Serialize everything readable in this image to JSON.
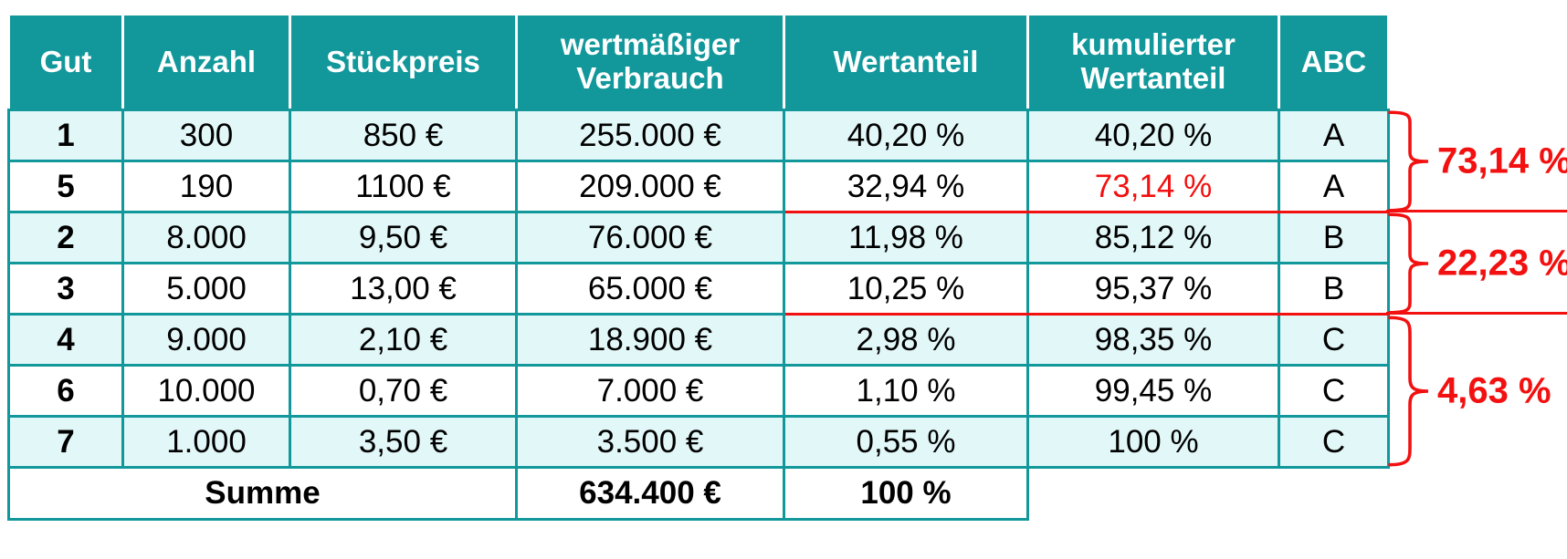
{
  "chart_data": {
    "type": "table",
    "headers": [
      "Gut",
      "Anzahl",
      "Stückpreis",
      "wertmäßiger\nVerbrauch",
      "Wertanteil",
      "kumulierter\nWertanteil",
      "ABC"
    ],
    "rows": [
      [
        "1",
        "300",
        "850 €",
        "255.000 €",
        "40,20 %",
        "40,20 %",
        "A"
      ],
      [
        "5",
        "190",
        "1100 €",
        "209.000 €",
        "32,94 %",
        "73,14 %",
        "A"
      ],
      [
        "2",
        "8.000",
        "9,50 €",
        "76.000 €",
        "11,98 %",
        "85,12 %",
        "B"
      ],
      [
        "3",
        "5.000",
        "13,00 €",
        "65.000 €",
        "10,25 %",
        "95,37 %",
        "B"
      ],
      [
        "4",
        "9.000",
        "2,10 €",
        "18.900 €",
        "2,98 %",
        "98,35 %",
        "C"
      ],
      [
        "6",
        "10.000",
        "0,70 €",
        "7.000 €",
        "1,10 %",
        "99,45 %",
        "C"
      ],
      [
        "7",
        "1.000",
        "3,50 €",
        "3.500 €",
        "0,55 %",
        "100 %",
        "C"
      ]
    ],
    "sum_row": {
      "label": "Summe",
      "verbrauch": "634.400 €",
      "wertanteil": "100 %"
    },
    "class_groups": [
      {
        "class": "A",
        "share_label": "73,14 %",
        "row_indexes": [
          0,
          1
        ]
      },
      {
        "class": "B",
        "share_label": "22,23 %",
        "row_indexes": [
          2,
          3
        ]
      },
      {
        "class": "C",
        "share_label": "4,63 %",
        "row_indexes": [
          4,
          5,
          6
        ]
      }
    ],
    "highlighted_cell": {
      "row_gut": "5",
      "column": "kumulierter Wertanteil",
      "value": "73,14 %",
      "color": "#F21010"
    }
  },
  "colors": {
    "header_teal": "#12989B",
    "grid_teal": "#12989B",
    "row_shade": "#E2F7F8",
    "annotation_red": "#F21010",
    "header_text": "#FFFFFF",
    "body_text": "#000000"
  }
}
